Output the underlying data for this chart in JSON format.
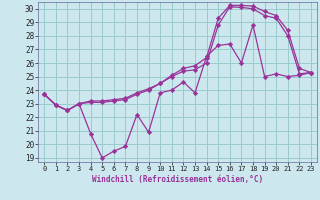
{
  "xlabel": "Windchill (Refroidissement éolien,°C)",
  "bg_color": "#cce8ee",
  "grid_color": "#99cccc",
  "line_color": "#993399",
  "xlim": [
    -0.5,
    23.5
  ],
  "ylim": [
    18.7,
    30.5
  ],
  "xticks": [
    0,
    1,
    2,
    3,
    4,
    5,
    6,
    7,
    8,
    9,
    10,
    11,
    12,
    13,
    14,
    15,
    16,
    17,
    18,
    19,
    20,
    21,
    22,
    23
  ],
  "yticks": [
    19,
    20,
    21,
    22,
    23,
    24,
    25,
    26,
    27,
    28,
    29,
    30
  ],
  "line1_x": [
    0,
    1,
    2,
    3,
    4,
    5,
    6,
    7,
    8,
    9,
    10,
    11,
    12,
    13,
    14,
    15,
    16,
    17,
    18,
    19,
    20,
    21,
    22,
    23
  ],
  "line1_y": [
    23.7,
    22.9,
    22.5,
    23.0,
    20.8,
    19.0,
    19.5,
    19.85,
    22.2,
    20.9,
    23.8,
    24.0,
    24.6,
    23.8,
    26.5,
    27.3,
    27.4,
    26.0,
    28.8,
    25.0,
    25.2,
    25.0,
    25.1,
    25.3
  ],
  "line2_x": [
    0,
    1,
    2,
    3,
    4,
    5,
    6,
    7,
    8,
    9,
    10,
    11,
    12,
    13,
    14,
    15,
    16,
    17,
    18,
    19,
    20,
    21,
    22,
    23
  ],
  "line2_y": [
    23.7,
    22.9,
    22.5,
    23.0,
    23.1,
    23.1,
    23.2,
    23.3,
    23.7,
    24.0,
    24.5,
    25.0,
    25.4,
    25.5,
    26.0,
    28.8,
    30.15,
    30.1,
    30.0,
    29.5,
    29.3,
    28.0,
    25.2,
    25.3
  ],
  "line3_x": [
    0,
    1,
    2,
    3,
    4,
    5,
    6,
    7,
    8,
    9,
    10,
    11,
    12,
    13,
    14,
    15,
    16,
    17,
    18,
    19,
    20,
    21,
    22,
    23
  ],
  "line3_y": [
    23.7,
    22.9,
    22.5,
    23.0,
    23.2,
    23.2,
    23.3,
    23.4,
    23.8,
    24.1,
    24.5,
    25.1,
    25.6,
    25.8,
    26.4,
    29.3,
    30.25,
    30.25,
    30.2,
    29.8,
    29.5,
    28.4,
    25.6,
    25.3
  ]
}
